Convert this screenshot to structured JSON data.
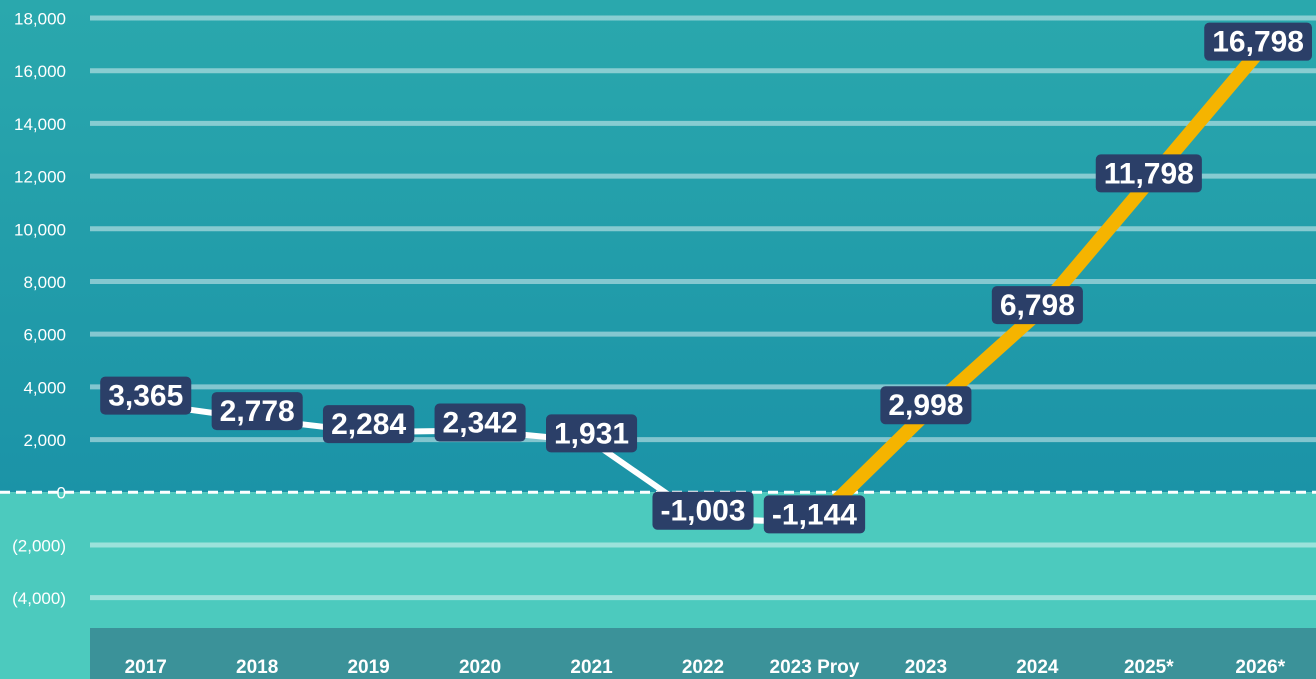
{
  "chart_data": {
    "type": "line",
    "categories": [
      "2017",
      "2018",
      "2019",
      "2020",
      "2021",
      "2022",
      "2023 Proy",
      "2023",
      "2024",
      "2025*",
      "2026*"
    ],
    "series": [
      {
        "color": "#ffffff",
        "values": [
          3365,
          2778,
          2284,
          2342,
          1931,
          -1003,
          -1144,
          null,
          null,
          null,
          null
        ],
        "value_labels": [
          "3,365",
          "2,778",
          "2,284",
          "2,342",
          "1,931",
          "-1,003",
          "-1,144",
          null,
          null,
          null,
          null
        ]
      },
      {
        "color": "#f5b400",
        "values": [
          null,
          null,
          null,
          null,
          null,
          null,
          -1144,
          2998,
          6798,
          11798,
          16798
        ],
        "value_labels": [
          null,
          null,
          null,
          null,
          null,
          null,
          null,
          "2,998",
          "6,798",
          "11,798",
          "16,798"
        ]
      }
    ],
    "ylim": [
      -5000,
      18000
    ],
    "yticks": [
      {
        "value": -4000,
        "label": "(4,000)"
      },
      {
        "value": -2000,
        "label": "(2,000)"
      },
      0,
      {
        "value": 2000,
        "label": "2,000"
      },
      {
        "value": 4000,
        "label": "4,000"
      },
      {
        "value": 6000,
        "label": "6,000"
      },
      {
        "value": 8000,
        "label": "8,000"
      },
      {
        "value": 10000,
        "label": "10,000"
      },
      {
        "value": 12000,
        "label": "12,000"
      },
      {
        "value": 14000,
        "label": "14,000"
      },
      {
        "value": 16000,
        "label": "16,000"
      },
      {
        "value": 18000,
        "label": "18,000"
      }
    ],
    "grid": true
  }
}
